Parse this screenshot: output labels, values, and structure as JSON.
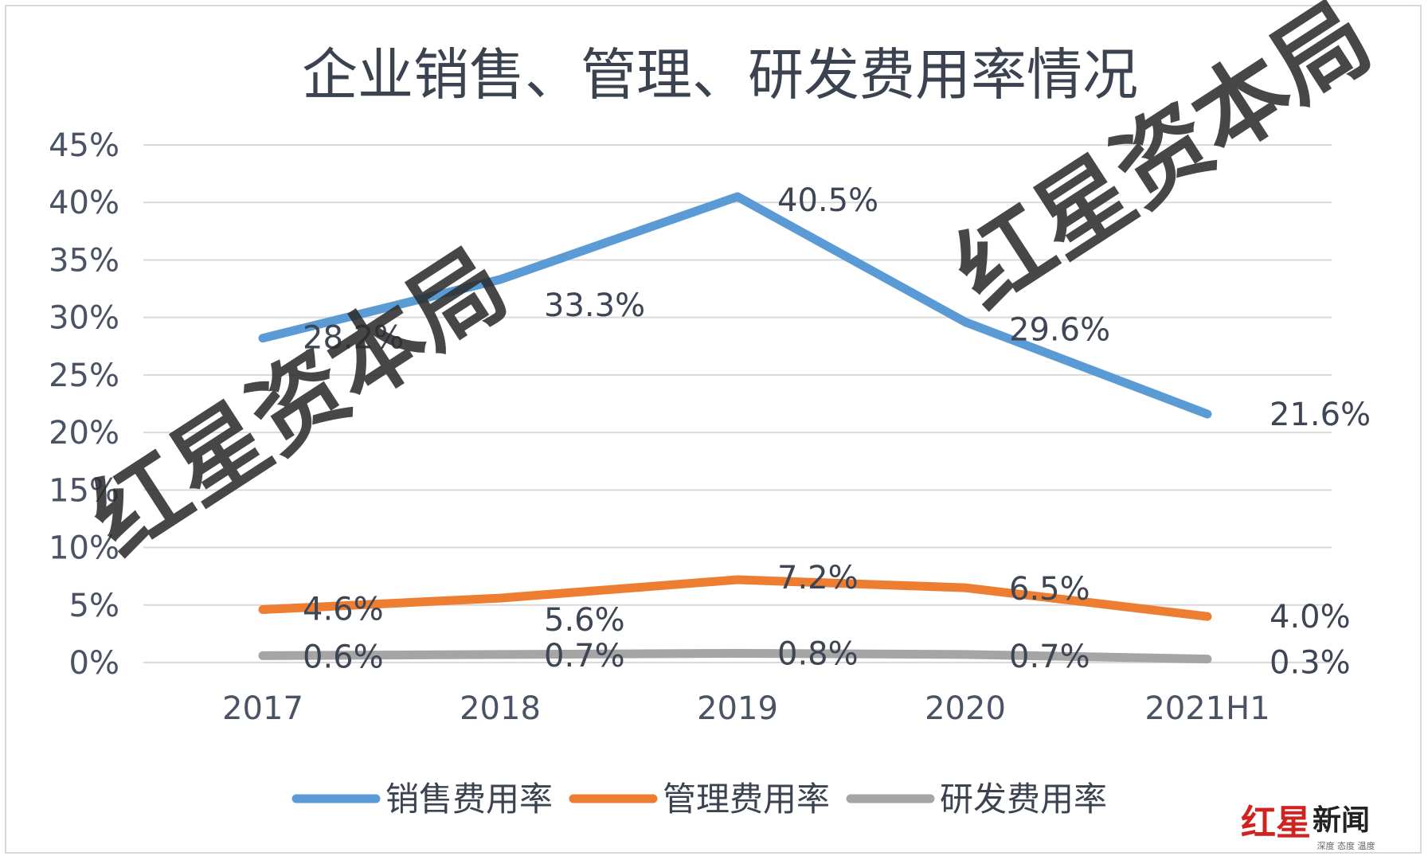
{
  "chart_data": {
    "type": "line",
    "title": "企业销售、管理、研发费用率情况",
    "categories": [
      "2017",
      "2018",
      "2019",
      "2020",
      "2021H1"
    ],
    "ylim": [
      0,
      45
    ],
    "yticks": [
      "0%",
      "5%",
      "10%",
      "15%",
      "20%",
      "25%",
      "30%",
      "35%",
      "40%",
      "45%"
    ],
    "grid": true,
    "legend_position": "bottom",
    "series": [
      {
        "name": "销售费用率",
        "color": "#5b9bd5",
        "values": [
          28.2,
          33.3,
          40.5,
          29.6,
          21.6
        ],
        "labels": [
          "28.2%",
          "33.3%",
          "40.5%",
          "29.6%",
          "21.6%"
        ]
      },
      {
        "name": "管理费用率",
        "color": "#ed7d31",
        "values": [
          4.6,
          5.6,
          7.2,
          6.5,
          4.0
        ],
        "labels": [
          "4.6%",
          "5.6%",
          "7.2%",
          "6.5%",
          "4.0%"
        ]
      },
      {
        "name": "研发费用率",
        "color": "#a5a5a5",
        "values": [
          0.6,
          0.7,
          0.8,
          0.7,
          0.3
        ],
        "labels": [
          "0.6%",
          "0.7%",
          "0.8%",
          "0.7%",
          "0.3%"
        ]
      }
    ]
  },
  "watermarks": [
    "红星资本局",
    "红星资本局"
  ],
  "logo": {
    "text": "红星新闻",
    "red_text": "红星",
    "black_text": "新闻",
    "tagline": "深度 态度 温度"
  }
}
